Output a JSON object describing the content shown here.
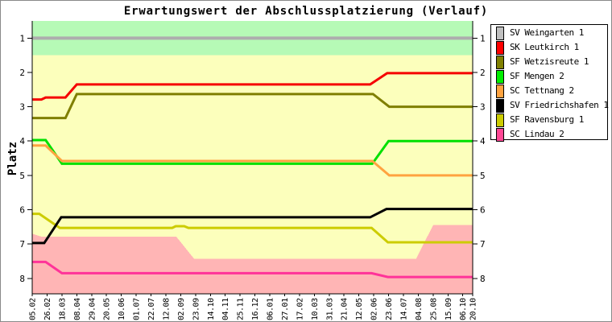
{
  "window": {
    "background": "#ffffff",
    "border_color": "#8a8a8a"
  },
  "chart_data": {
    "type": "line",
    "title": "Erwartungswert der Abschlussplatzierung (Verlauf)",
    "xlabel": "",
    "ylabel": "Platz",
    "y_inverted": true,
    "ylim": [
      0.5,
      8.45
    ],
    "yticks": [
      1,
      2,
      3,
      4,
      5,
      6,
      7,
      8
    ],
    "grid": false,
    "legend_position": "right-outside",
    "x_total_days": 623,
    "xticks": [
      {
        "label": "05.02",
        "day": 0
      },
      {
        "label": "26.02",
        "day": 21
      },
      {
        "label": "18.03",
        "day": 42
      },
      {
        "label": "08.04",
        "day": 63
      },
      {
        "label": "29.04",
        "day": 84
      },
      {
        "label": "20.05",
        "day": 105
      },
      {
        "label": "10.06",
        "day": 126
      },
      {
        "label": "01.07",
        "day": 147
      },
      {
        "label": "22.07",
        "day": 168
      },
      {
        "label": "12.08",
        "day": 189
      },
      {
        "label": "02.09",
        "day": 210
      },
      {
        "label": "23.09",
        "day": 231
      },
      {
        "label": "14.10",
        "day": 252
      },
      {
        "label": "04.11",
        "day": 273
      },
      {
        "label": "25.11",
        "day": 294
      },
      {
        "label": "16.12",
        "day": 315
      },
      {
        "label": "06.01",
        "day": 336
      },
      {
        "label": "27.01",
        "day": 357
      },
      {
        "label": "17.02",
        "day": 378
      },
      {
        "label": "10.03",
        "day": 399
      },
      {
        "label": "31.03",
        "day": 420
      },
      {
        "label": "21.04",
        "day": 441
      },
      {
        "label": "12.05",
        "day": 462
      },
      {
        "label": "02.06",
        "day": 483
      },
      {
        "label": "23.06",
        "day": 504
      },
      {
        "label": "14.07",
        "day": 525
      },
      {
        "label": "04.08",
        "day": 546
      },
      {
        "label": "25.08",
        "day": 567
      },
      {
        "label": "15.09",
        "day": 588
      },
      {
        "label": "06.10",
        "day": 609
      },
      {
        "label": "20.10",
        "day": 623
      }
    ],
    "bands": [
      {
        "name": "middle-zone",
        "color": "#FCFFBC",
        "from": 1.5,
        "to": 8.45
      },
      {
        "name": "top-zone",
        "color": "#B6FAB6",
        "from": 0.5,
        "to": 1.5
      },
      {
        "name": "bottom-zone",
        "color": "#FFB5B5",
        "to": 8.45,
        "top_boundary": [
          [
            0,
            6.7
          ],
          [
            14,
            6.79
          ],
          [
            204,
            6.79
          ],
          [
            229,
            7.43
          ],
          [
            543,
            7.43
          ],
          [
            567,
            6.45
          ],
          [
            623,
            6.45
          ]
        ]
      }
    ],
    "series": [
      {
        "name": "SV Weingarten 1",
        "color": "#ADADAD",
        "width": 4,
        "z": 1,
        "points": [
          [
            0,
            1.0
          ],
          [
            623,
            1.0
          ]
        ]
      },
      {
        "name": "SK Leutkirch 1",
        "color": "#F50000",
        "width": 3,
        "z": 2,
        "points": [
          [
            0,
            2.79
          ],
          [
            13,
            2.79
          ],
          [
            19,
            2.73
          ],
          [
            47,
            2.73
          ],
          [
            63,
            2.35
          ],
          [
            478,
            2.35
          ],
          [
            502,
            2.02
          ],
          [
            623,
            2.02
          ]
        ]
      },
      {
        "name": "SF Wetzisreute 1",
        "color": "#7F7F00",
        "width": 3,
        "z": 3,
        "points": [
          [
            0,
            3.33
          ],
          [
            47,
            3.33
          ],
          [
            63,
            2.63
          ],
          [
            482,
            2.63
          ],
          [
            505,
            3.0
          ],
          [
            623,
            3.0
          ]
        ]
      },
      {
        "name": "SF Mengen 2",
        "color": "#00E000",
        "width": 3,
        "z": 4,
        "points": [
          [
            0,
            3.97
          ],
          [
            19,
            3.97
          ],
          [
            42,
            4.66
          ],
          [
            481,
            4.66
          ],
          [
            504,
            4.0
          ],
          [
            623,
            4.0
          ]
        ]
      },
      {
        "name": "SC Tettnang 2",
        "color": "#FFA340",
        "width": 3,
        "z": 5,
        "points": [
          [
            0,
            4.13
          ],
          [
            19,
            4.13
          ],
          [
            42,
            4.58
          ],
          [
            481,
            4.58
          ],
          [
            505,
            5.0
          ],
          [
            623,
            5.0
          ]
        ]
      },
      {
        "name": "SV Friedrichshafen 1",
        "color": "#000000",
        "width": 3,
        "z": 8,
        "points": [
          [
            0,
            6.97
          ],
          [
            17,
            6.97
          ],
          [
            41,
            6.22
          ],
          [
            478,
            6.22
          ],
          [
            501,
            5.98
          ],
          [
            623,
            5.98
          ]
        ]
      },
      {
        "name": "SF Ravensburg 1",
        "color": "#CCCC00",
        "width": 3,
        "z": 6,
        "points": [
          [
            0,
            6.12
          ],
          [
            10,
            6.12
          ],
          [
            39,
            6.53
          ],
          [
            198,
            6.53
          ],
          [
            203,
            6.48
          ],
          [
            215,
            6.48
          ],
          [
            221,
            6.53
          ],
          [
            480,
            6.53
          ],
          [
            503,
            6.95
          ],
          [
            623,
            6.95
          ]
        ]
      },
      {
        "name": "SC Lindau 2",
        "color": "#FF3399",
        "width": 3,
        "z": 7,
        "points": [
          [
            0,
            7.52
          ],
          [
            19,
            7.52
          ],
          [
            42,
            7.85
          ],
          [
            480,
            7.85
          ],
          [
            503,
            7.96
          ],
          [
            623,
            7.96
          ]
        ]
      }
    ]
  },
  "legend": {
    "items": [
      {
        "label": "SV Weingarten 1",
        "color": "#C0C0C0"
      },
      {
        "label": "SK Leutkirch 1",
        "color": "#FF0000"
      },
      {
        "label": "SF Wetzisreute 1",
        "color": "#808000"
      },
      {
        "label": "SF Mengen 2",
        "color": "#00EE00"
      },
      {
        "label": "SC Tettnang 2",
        "color": "#FFA340"
      },
      {
        "label": "SV Friedrichshafen 1",
        "color": "#000000"
      },
      {
        "label": "SF Ravensburg 1",
        "color": "#CCCC00"
      },
      {
        "label": "SC Lindau 2",
        "color": "#FF4795"
      }
    ]
  }
}
